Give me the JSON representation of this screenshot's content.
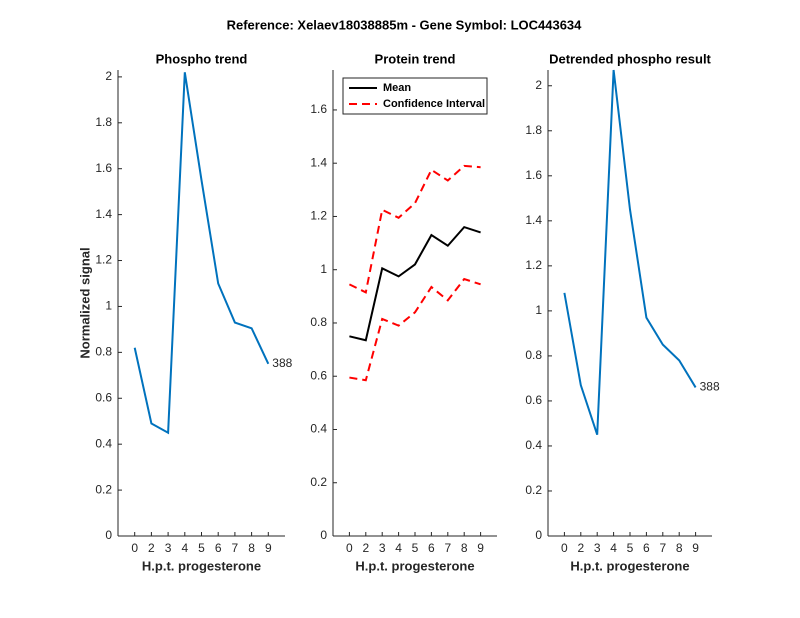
{
  "title": "Reference:  Xelaev18038885m - Gene Symbol:  LOC443634",
  "chart_data": [
    {
      "type": "line",
      "title": "Phospho trend",
      "ylabel": "Normalized signal",
      "xlabel": "H.p.t. progesterone",
      "categories": [
        "0",
        "2",
        "3",
        "4",
        "5",
        "6",
        "7",
        "8",
        "9"
      ],
      "series": [
        {
          "color": "#0072bd",
          "values": [
            0.82,
            0.49,
            0.45,
            2.02,
            1.55,
            1.1,
            0.93,
            0.905,
            0.75
          ]
        }
      ],
      "annotation": "388",
      "ylim": [
        0,
        2.03
      ],
      "yticks": [
        0,
        0.2,
        0.4,
        0.6,
        0.8,
        1,
        1.2,
        1.4,
        1.6,
        1.8,
        2
      ]
    },
    {
      "type": "band-line",
      "title": "Protein trend",
      "xlabel": "H.p.t. progesterone",
      "categories": [
        "0",
        "2",
        "3",
        "4",
        "5",
        "6",
        "7",
        "8",
        "9"
      ],
      "series": [
        {
          "name": "Mean",
          "color": "#000000",
          "values": [
            0.75,
            0.735,
            1.005,
            0.975,
            1.02,
            1.13,
            1.09,
            1.16,
            1.14
          ]
        },
        {
          "name": "Confidence Interval",
          "color": "#ff0000",
          "dashed": true,
          "upper": [
            0.945,
            0.915,
            1.225,
            1.195,
            1.25,
            1.375,
            1.335,
            1.39,
            1.385
          ],
          "lower": [
            0.595,
            0.585,
            0.815,
            0.79,
            0.84,
            0.935,
            0.885,
            0.965,
            0.945
          ]
        }
      ],
      "legend": "upper left",
      "ylim": [
        0,
        1.75
      ],
      "yticks": [
        0,
        0.2,
        0.4,
        0.6,
        0.8,
        1,
        1.2,
        1.4,
        1.6
      ]
    },
    {
      "type": "line",
      "title": "Detrended phospho result",
      "xlabel": "H.p.t. progesterone",
      "categories": [
        "0",
        "2",
        "3",
        "4",
        "5",
        "6",
        "7",
        "8",
        "9"
      ],
      "series": [
        {
          "color": "#0072bd",
          "values": [
            1.08,
            0.67,
            0.45,
            2.07,
            1.45,
            0.97,
            0.85,
            0.78,
            0.66
          ]
        }
      ],
      "annotation": "388",
      "ylim": [
        0,
        2.07
      ],
      "yticks": [
        0,
        0.2,
        0.4,
        0.6,
        0.8,
        1,
        1.2,
        1.4,
        1.6,
        1.8,
        2
      ]
    }
  ]
}
